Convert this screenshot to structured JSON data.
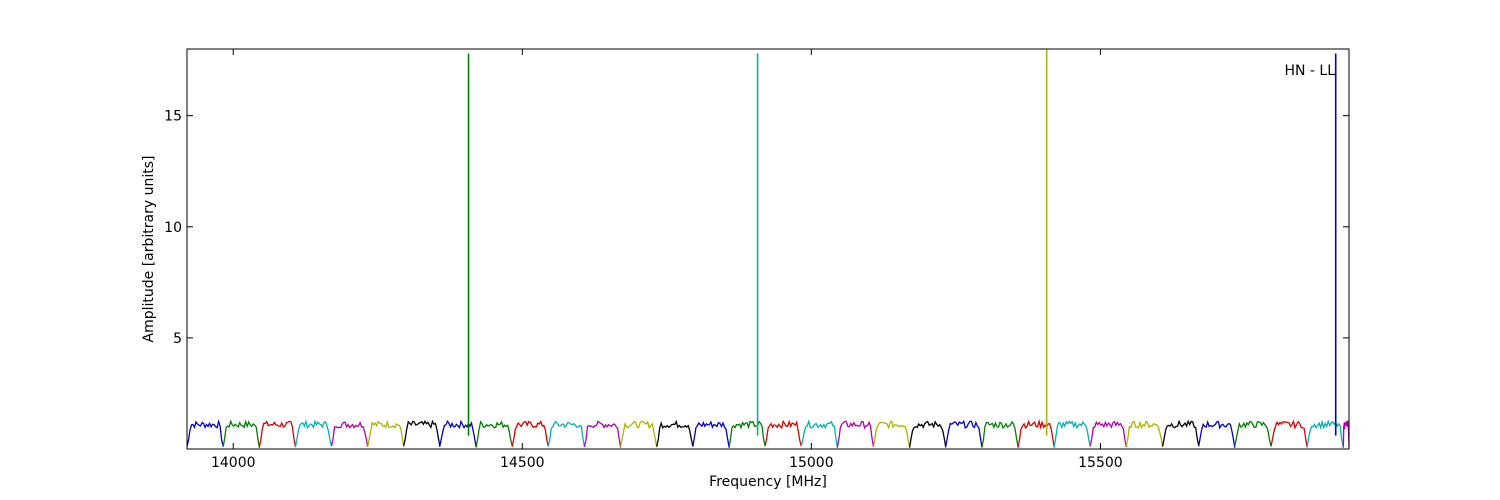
{
  "chart_data": {
    "type": "line",
    "title": "",
    "annotation": "HN - LL",
    "xlabel": "Frequency [MHz]",
    "ylabel": "Amplitude [arbitrary units]",
    "xlim": [
      13920,
      15930
    ],
    "ylim": [
      0,
      18
    ],
    "x_ticks": [
      14000,
      14500,
      15000,
      15500
    ],
    "y_ticks": [
      5,
      10,
      15
    ],
    "grid": false,
    "legend": "none",
    "channel_width_mhz": 62.5,
    "channel_start_mhz": 13920,
    "series_colors": [
      "#0000cc",
      "#007f00",
      "#dd0000",
      "#00b2b2",
      "#b200b2",
      "#b2b200",
      "#000000"
    ],
    "spikes": [
      {
        "x": 14407,
        "y": 17.8,
        "color": "#007f00"
      },
      {
        "x": 14907,
        "y": 17.8,
        "color": "#00b2b2"
      },
      {
        "x": 15407,
        "y": 18.0,
        "color": "#b2b200"
      },
      {
        "x": 15907,
        "y": 17.8,
        "color": "#0000cc"
      }
    ],
    "baseline_level": 1.0
  }
}
